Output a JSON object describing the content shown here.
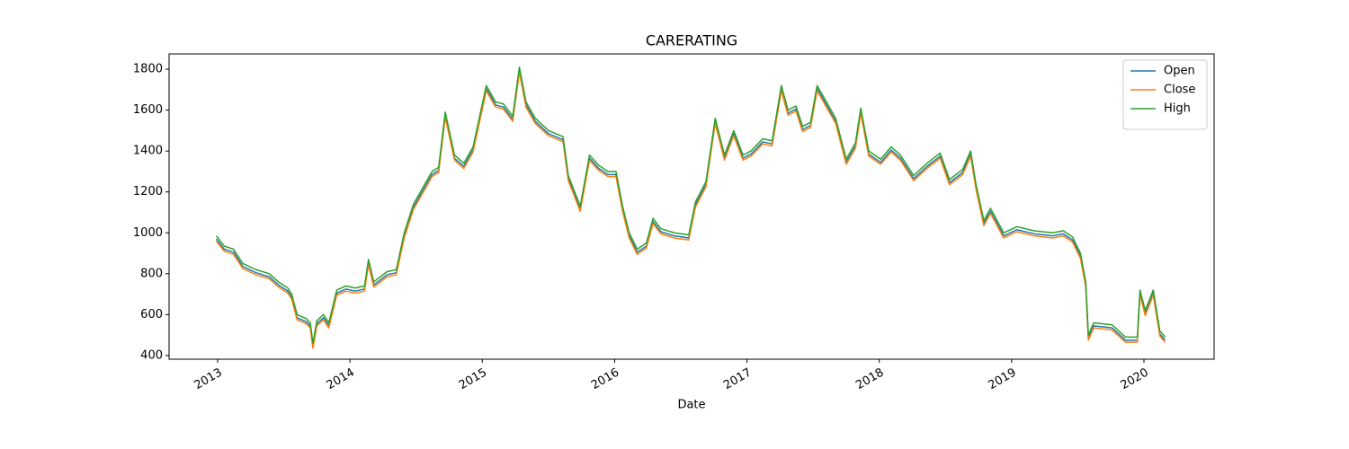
{
  "chart_data": {
    "type": "line",
    "title": "CARERATING",
    "xlabel": "Date",
    "x": [
      2012.99,
      2013.05,
      2013.12,
      2013.19,
      2013.29,
      2013.39,
      2013.46,
      2013.53,
      2013.56,
      2013.6,
      2013.67,
      2013.7,
      2013.72,
      2013.75,
      2013.8,
      2013.84,
      2013.9,
      2013.97,
      2014.04,
      2014.11,
      2014.14,
      2014.18,
      2014.28,
      2014.35,
      2014.41,
      2014.48,
      2014.55,
      2014.62,
      2014.67,
      2014.72,
      2014.79,
      2014.86,
      2014.93,
      2015.03,
      2015.1,
      2015.16,
      2015.23,
      2015.28,
      2015.33,
      2015.4,
      2015.5,
      2015.61,
      2015.65,
      2015.74,
      2015.81,
      2015.88,
      2015.95,
      2016.01,
      2016.06,
      2016.11,
      2016.17,
      2016.24,
      2016.29,
      2016.35,
      2016.45,
      2016.56,
      2016.61,
      2016.69,
      2016.76,
      2016.83,
      2016.9,
      2016.97,
      2017.03,
      2017.12,
      2017.19,
      2017.26,
      2017.31,
      2017.37,
      2017.42,
      2017.48,
      2017.53,
      2017.6,
      2017.67,
      2017.75,
      2017.82,
      2017.86,
      2017.92,
      2018.01,
      2018.09,
      2018.16,
      2018.26,
      2018.36,
      2018.46,
      2018.53,
      2018.63,
      2018.69,
      2018.73,
      2018.79,
      2018.84,
      2018.94,
      2019.04,
      2019.17,
      2019.31,
      2019.39,
      2019.46,
      2019.52,
      2019.56,
      2019.58,
      2019.62,
      2019.76,
      2019.86,
      2019.95,
      2019.97,
      2020.01,
      2020.07,
      2020.12,
      2020.16
    ],
    "series": [
      {
        "name": "Open",
        "color": "#1f77b4",
        "values": [
          970,
          920,
          905,
          835,
          805,
          785,
          745,
          715,
          685,
          585,
          565,
          545,
          445,
          555,
          585,
          545,
          705,
          725,
          715,
          725,
          855,
          745,
          795,
          805,
          985,
          1125,
          1205,
          1285,
          1305,
          1575,
          1365,
          1325,
          1405,
          1705,
          1625,
          1615,
          1555,
          1795,
          1625,
          1545,
          1485,
          1455,
          1265,
          1115,
          1365,
          1315,
          1285,
          1285,
          1115,
          985,
          905,
          935,
          1055,
          1005,
          985,
          975,
          1135,
          1235,
          1545,
          1365,
          1485,
          1365,
          1385,
          1445,
          1435,
          1705,
          1585,
          1605,
          1505,
          1525,
          1705,
          1625,
          1545,
          1345,
          1425,
          1595,
          1385,
          1345,
          1405,
          1365,
          1265,
          1325,
          1375,
          1245,
          1295,
          1385,
          1225,
          1045,
          1105,
          985,
          1015,
          995,
          985,
          995,
          965,
          885,
          745,
          485,
          545,
          535,
          475,
          475,
          705,
          605,
          705,
          505,
          475
        ]
      },
      {
        "name": "Close",
        "color": "#ff7f0e",
        "values": [
          960,
          910,
          895,
          825,
          795,
          775,
          735,
          705,
          675,
          575,
          555,
          535,
          435,
          545,
          575,
          535,
          695,
          715,
          705,
          715,
          845,
          735,
          785,
          795,
          975,
          1115,
          1195,
          1275,
          1295,
          1565,
          1355,
          1315,
          1395,
          1695,
          1615,
          1605,
          1545,
          1785,
          1615,
          1535,
          1475,
          1445,
          1255,
          1105,
          1355,
          1305,
          1275,
          1275,
          1105,
          975,
          895,
          925,
          1045,
          995,
          975,
          965,
          1125,
          1225,
          1535,
          1355,
          1475,
          1355,
          1375,
          1435,
          1425,
          1695,
          1575,
          1595,
          1495,
          1515,
          1695,
          1615,
          1535,
          1335,
          1415,
          1585,
          1375,
          1335,
          1395,
          1355,
          1255,
          1315,
          1365,
          1235,
          1285,
          1375,
          1215,
          1035,
          1095,
          975,
          1005,
          985,
          975,
          985,
          955,
          875,
          735,
          475,
          535,
          525,
          465,
          465,
          695,
          595,
          695,
          495,
          465
        ]
      },
      {
        "name": "High",
        "color": "#2ca02c",
        "values": [
          985,
          935,
          920,
          850,
          820,
          800,
          760,
          730,
          700,
          600,
          580,
          560,
          460,
          570,
          600,
          560,
          720,
          740,
          730,
          740,
          870,
          760,
          810,
          820,
          1000,
          1140,
          1220,
          1300,
          1320,
          1590,
          1380,
          1340,
          1420,
          1720,
          1640,
          1630,
          1570,
          1810,
          1640,
          1560,
          1500,
          1470,
          1280,
          1130,
          1380,
          1330,
          1300,
          1300,
          1130,
          1000,
          920,
          950,
          1070,
          1020,
          1000,
          990,
          1150,
          1250,
          1560,
          1380,
          1500,
          1380,
          1400,
          1460,
          1450,
          1720,
          1600,
          1620,
          1520,
          1540,
          1720,
          1640,
          1560,
          1360,
          1440,
          1610,
          1400,
          1360,
          1420,
          1380,
          1280,
          1340,
          1390,
          1260,
          1310,
          1400,
          1240,
          1060,
          1120,
          1000,
          1030,
          1010,
          1000,
          1010,
          980,
          900,
          760,
          500,
          560,
          550,
          490,
          490,
          720,
          620,
          720,
          520,
          490
        ]
      }
    ],
    "xlim": [
      2012.633,
      2020.53
    ],
    "xticks": [
      2013,
      2014,
      2015,
      2016,
      2017,
      2018,
      2019,
      2020
    ],
    "ylim": [
      382,
      1875
    ],
    "yticks": [
      400,
      600,
      800,
      1000,
      1200,
      1400,
      1600,
      1800
    ],
    "legend": "upper right"
  }
}
